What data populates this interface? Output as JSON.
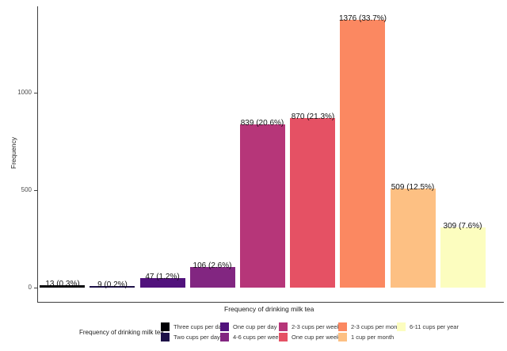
{
  "chart_data": {
    "type": "bar",
    "title": "",
    "xlabel": "Frequency of drinking milk tea",
    "ylabel": "Frequency",
    "categories": [
      "Three cups per day",
      "Two cups per day",
      "One cup per day",
      "4-6 cups per week",
      "2-3 cups per week",
      "One cup per week",
      "2-3 cups per month",
      "1 cup per month",
      "6-11 cups per year"
    ],
    "values": [
      13,
      9,
      47,
      106,
      839,
      870,
      1376,
      509,
      309
    ],
    "bar_labels": [
      "13 (0.3%)",
      "9 (0.2%)",
      "47 (1.2%)",
      "106 (2.6%)",
      "839 (20.6%)",
      "870 (21.3%)",
      "1376 (33.7%)",
      "509 (12.5%)",
      "309 (7.6%)"
    ],
    "colors": [
      "#000004",
      "#1D1147",
      "#51127C",
      "#822681",
      "#B63679",
      "#E55164",
      "#FB8861",
      "#FDC083",
      "#FCFDBF"
    ],
    "yticks": [
      0,
      500,
      1000
    ],
    "ylim": [
      0,
      1445
    ],
    "grid": false,
    "legend": {
      "title": "Frequency of drinking milk tea",
      "position": "bottom",
      "rows": 2
    }
  }
}
